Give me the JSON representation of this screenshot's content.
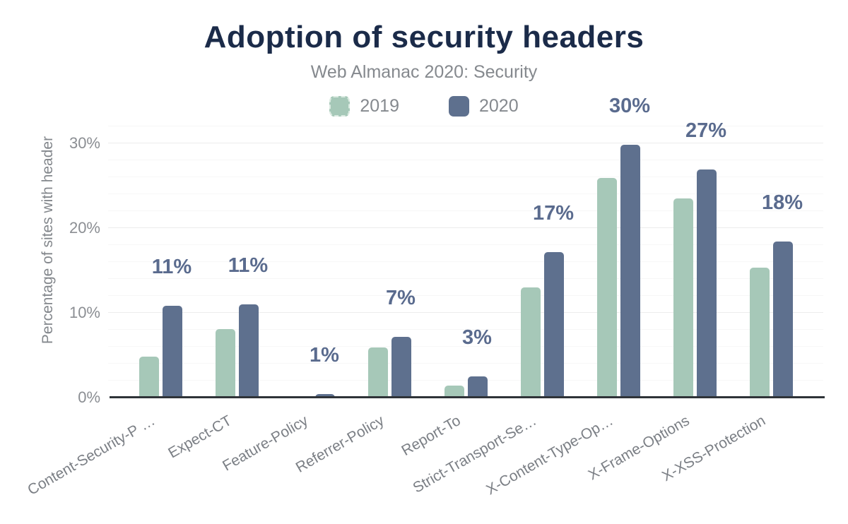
{
  "header": {
    "title": "Adoption of security headers",
    "subtitle": "Web Almanac 2020: Security"
  },
  "colors": {
    "title": "#1b2b49",
    "subtitle_gray": "#85898e",
    "series_2019": "#a6c8b8",
    "series_2020": "#5e708e",
    "value_label": "#5a6b8e",
    "axis_line": "#2f3338",
    "tick_gray": "#8b8e93"
  },
  "chart_data": {
    "type": "bar",
    "title": "Adoption of security headers",
    "subtitle": "Web Almanac 2020: Security",
    "categories": [
      "Content-Security-P …",
      "Expect-CT",
      "Feature-Policy",
      "Referrer-Policy",
      "Report-To",
      "Strict-Transport-Se…",
      "X-Content-Type-Op…",
      "X-Frame-Options",
      "X-XSS-Protection"
    ],
    "series": [
      {
        "name": "2019",
        "color": "#a6c8b8",
        "values": [
          4.8,
          8.1,
          0.1,
          5.9,
          1.4,
          13.0,
          25.9,
          23.5,
          15.3
        ]
      },
      {
        "name": "2020",
        "color": "#5e708e",
        "values": [
          10.8,
          11.0,
          0.4,
          7.2,
          2.5,
          17.2,
          29.8,
          26.9,
          18.4
        ]
      }
    ],
    "data_labels": [
      "11%",
      "11%",
      "1%",
      "7%",
      "3%",
      "17%",
      "30%",
      "27%",
      "18%"
    ],
    "data_labels_on_series": "2020",
    "xlabel": "",
    "ylabel": "Percentage of sites with header",
    "yticks": [
      {
        "value": 0,
        "label": "0%"
      },
      {
        "value": 10,
        "label": "10%"
      },
      {
        "value": 20,
        "label": "20%"
      },
      {
        "value": 30,
        "label": "30%"
      }
    ],
    "ylim": [
      0,
      32
    ],
    "grid": {
      "minor_step": 2,
      "major_step": 10,
      "minor_on": true,
      "major_on": true
    },
    "legend_position": "top"
  }
}
